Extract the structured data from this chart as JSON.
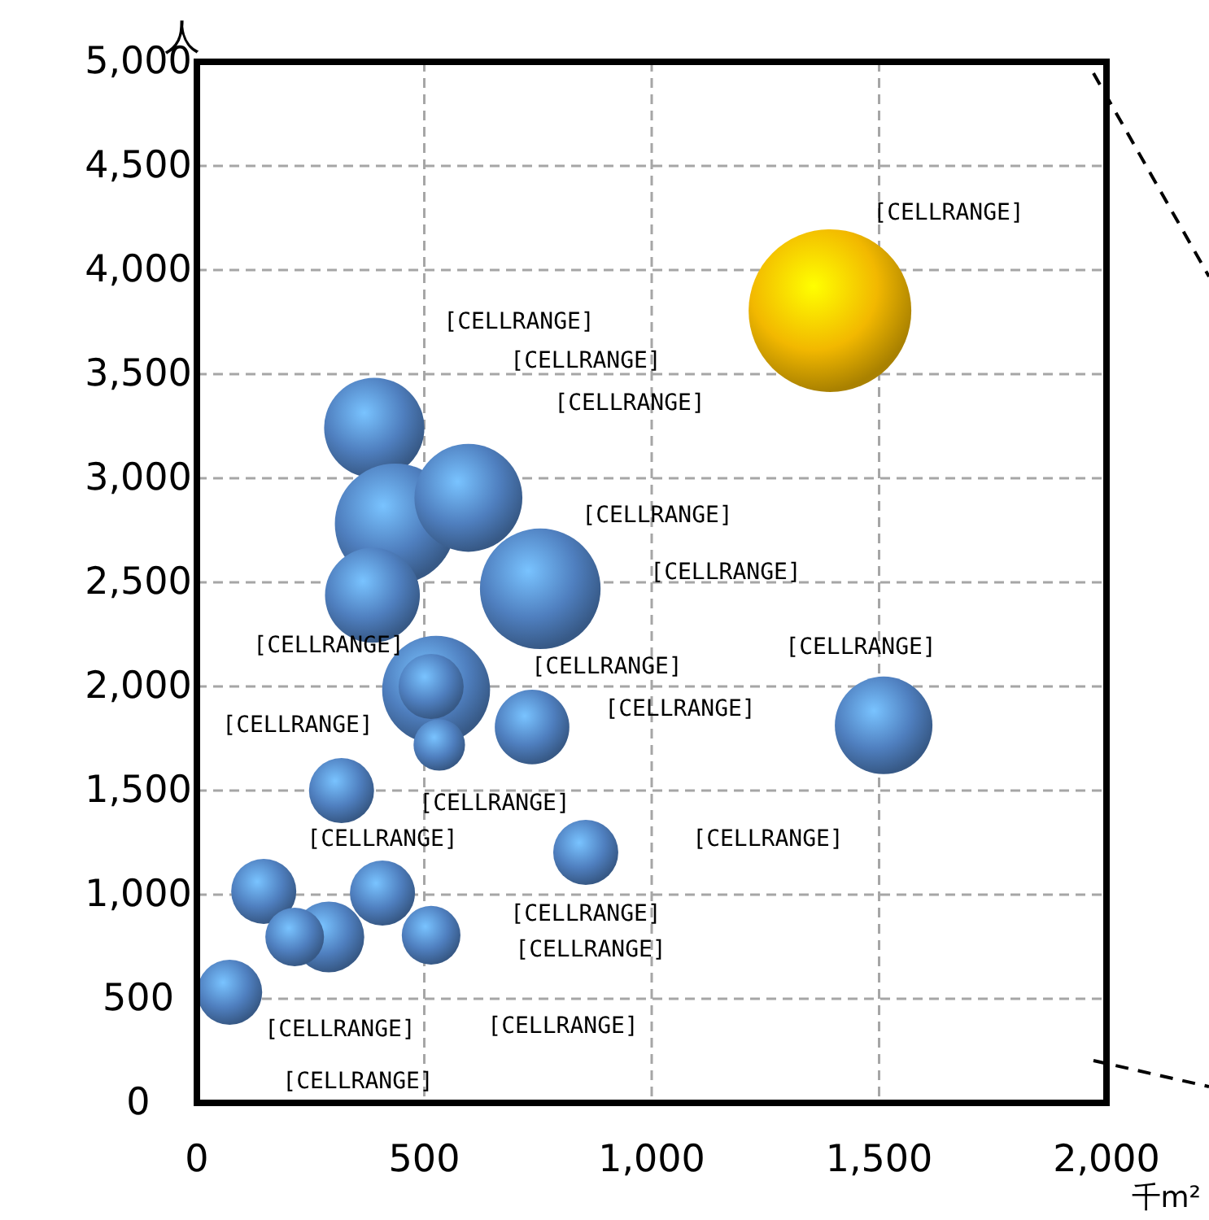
{
  "chart_data": {
    "type": "bubble",
    "xlabel": "千m²",
    "ylabel": "人",
    "x": [
      1392,
      390,
      436,
      597,
      755,
      386,
      526,
      515,
      533,
      737,
      1510,
      318,
      855,
      147,
      408,
      290,
      215,
      515,
      72
    ],
    "values": [
      3805,
      3242,
      2781,
      2906,
      2469,
      2438,
      1984,
      2000,
      1719,
      1805,
      1813,
      1500,
      1203,
      1016,
      1008,
      797,
      797,
      805,
      531
    ],
    "sizes": [
      1,
      0.38,
      0.55,
      0.44,
      0.55,
      0.34,
      0.44,
      0.16,
      0.1,
      0.21,
      0.36,
      0.16,
      0.16,
      0.16,
      0.16,
      0.19,
      0.13,
      0.13,
      0.16
    ],
    "colors": [
      "#f2b800",
      "#4f7fbf",
      "#4f7fbf",
      "#4f7fbf",
      "#4f7fbf",
      "#4f7fbf",
      "#4f7fbf",
      "#4f7fbf",
      "#4f7fbf",
      "#4f7fbf",
      "#4f7fbf",
      "#4f7fbf",
      "#4f7fbf",
      "#4f7fbf",
      "#4f7fbf",
      "#4f7fbf",
      "#4f7fbf",
      "#4f7fbf",
      "#4f7fbf"
    ],
    "xlim": [
      0,
      2000
    ],
    "xticks": [
      {
        "value": 0,
        "label": "0"
      },
      {
        "value": 500,
        "label": "500"
      },
      {
        "value": 1000,
        "label": "1,000"
      },
      {
        "value": 1500,
        "label": "1,500"
      },
      {
        "value": 2000,
        "label": "2,000"
      }
    ],
    "ylim": [
      0,
      5000
    ],
    "yticks": [
      {
        "value": 0,
        "label": "0"
      },
      {
        "value": 500,
        "label": "500"
      },
      {
        "value": 1000,
        "label": "1,000"
      },
      {
        "value": 1500,
        "label": "1,500"
      },
      {
        "value": 2000,
        "label": "2,000"
      },
      {
        "value": 2500,
        "label": "2,500"
      },
      {
        "value": 3000,
        "label": "3,000"
      },
      {
        "value": 3500,
        "label": "3,500"
      },
      {
        "value": 4000,
        "label": "4,000"
      },
      {
        "value": 4500,
        "label": "4,500"
      },
      {
        "value": 5000,
        "label": "5,000"
      }
    ],
    "grid": true,
    "annotations": [
      "[CELLRANGE]",
      "[CELLRANGE]",
      "[CELLRANGE]",
      "[CELLRANGE]",
      "[CELLRANGE]",
      "[CELLRANGE]",
      "[CELLRANGE]",
      "[CELLRANGE]",
      "[CELLRANGE]",
      "[CELLRANGE]",
      "[CELLRANGE]",
      "[CELLRANGE]",
      "[CELLRANGE]",
      "[CELLRANGE]",
      "[CELLRANGE]",
      "[CELLRANGE]",
      "[CELLRANGE]",
      "[CELLRANGE]",
      "[CELLRANGE]"
    ]
  }
}
